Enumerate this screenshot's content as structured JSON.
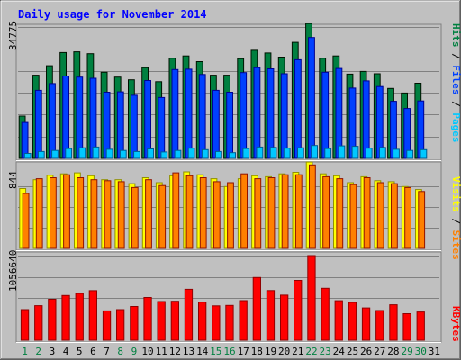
{
  "chart_data": {
    "type": "bar",
    "title": "Daily usage for November 2014",
    "categories": [
      "1",
      "2",
      "3",
      "4",
      "5",
      "6",
      "7",
      "8",
      "9",
      "10",
      "11",
      "12",
      "13",
      "14",
      "15",
      "16",
      "17",
      "18",
      "19",
      "20",
      "21",
      "22",
      "23",
      "24",
      "25",
      "26",
      "27",
      "28",
      "29",
      "30",
      "31"
    ],
    "weekend_days": [
      "1",
      "2",
      "8",
      "9",
      "15",
      "16",
      "22",
      "23",
      "29",
      "30"
    ],
    "panels": [
      {
        "id": "hits",
        "ylabel_parts": [
          "Pages",
          "Files",
          "Hits"
        ],
        "max_label": "34775",
        "ymax": 34775,
        "series": [
          {
            "name": "Hits",
            "color": "#008040",
            "values": [
              11200,
              22000,
              24500,
              28000,
              28200,
              27700,
              22800,
              21500,
              20800,
              24000,
              20300,
              26500,
              27100,
              25600,
              22000,
              22000,
              26400,
              28600,
              27900,
              26800,
              30700,
              35700,
              26500,
              27100,
              22300,
              23000,
              22400,
              18500,
              17300,
              19900,
              0
            ]
          },
          {
            "name": "Files",
            "color": "#0040ff",
            "values": [
              9500,
              18000,
              19800,
              21800,
              21500,
              21200,
              17500,
              17600,
              16700,
              20600,
              16100,
              23500,
              23600,
              22200,
              18000,
              17500,
              22700,
              24000,
              23700,
              22400,
              26100,
              32000,
              22800,
              23800,
              18600,
              20500,
              19000,
              15100,
              13200,
              15200,
              0
            ]
          },
          {
            "name": "Pages",
            "color": "#00c8ff",
            "values": [
              1300,
              1800,
              2100,
              2600,
              2800,
              3000,
              2400,
              2100,
              1800,
              2500,
              1700,
              2100,
              2700,
              2300,
              1800,
              1500,
              2600,
              3000,
              2900,
              2700,
              2800,
              3400,
              2600,
              3300,
              3200,
              2700,
              2900,
              2400,
              2100,
              2300,
              0
            ]
          }
        ]
      },
      {
        "id": "sites",
        "ylabel_parts": [
          "Sites",
          "Visits"
        ],
        "max_label": "844",
        "ymax": 844,
        "series": [
          {
            "name": "Visits",
            "color": "#ffff00",
            "values": [
              610,
              700,
              745,
              760,
              770,
              740,
              700,
              700,
              660,
              720,
              670,
              740,
              780,
              750,
              710,
              630,
              710,
              740,
              730,
              760,
              775,
              880,
              760,
              740,
              670,
              730,
              690,
              680,
              630,
              600,
              0
            ]
          },
          {
            "name": "Sites",
            "color": "#ff8000",
            "values": [
              560,
              710,
              720,
              750,
              720,
              700,
              690,
              680,
              620,
              700,
              640,
              770,
              740,
              720,
              680,
              670,
              760,
              710,
              720,
              750,
              750,
              850,
              730,
              710,
              650,
              720,
              670,
              660,
              620,
              580,
              0
            ]
          }
        ]
      },
      {
        "id": "kbytes",
        "ylabel_parts": [
          "KBytes"
        ],
        "max_label": "1056640",
        "ymax": 1056640,
        "series": [
          {
            "name": "KBytes",
            "color": "#ff0000",
            "values": [
              382000,
              432000,
              511000,
              559000,
              585000,
              619000,
              367000,
              382000,
              422000,
              534000,
              483000,
              487000,
              636000,
              476000,
              429000,
              435000,
              495000,
              783000,
              620000,
              563000,
              748000,
              1056640,
              649000,
              493000,
              472000,
              403000,
              371000,
              443000,
              332000,
              353000,
              0
            ]
          }
        ]
      }
    ]
  },
  "colors": {
    "background": "#c0c0c0",
    "title": "#0000ff",
    "gridline": "#808080",
    "weekday_label": "#000000",
    "weekend_label": "#008040",
    "sites_label": "#ff8000",
    "visits_label": "#ffff00",
    "kbytes_label": "#ff0000",
    "pages_label": "#00c8ff",
    "files_label": "#0040ff",
    "hits_label": "#008040"
  }
}
